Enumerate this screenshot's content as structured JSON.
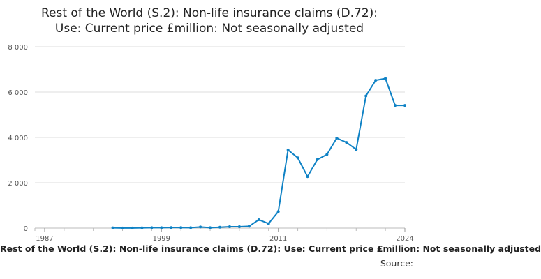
{
  "chart_data": {
    "type": "line",
    "title_lines": [
      "Rest of the World (S.2): Non-life insurance claims (D.72):",
      "Use: Current price £million: Not seasonally adjusted"
    ],
    "footer_title": "Rest of the World (S.2): Non-life insurance claims (D.72): Use: Current price £million: Not seasonally adjusted",
    "source_label": "Source:",
    "xlabel": "",
    "ylabel": "",
    "xlim": [
      1986,
      2024
    ],
    "ylim": [
      0,
      8000
    ],
    "x_ticks": [
      1987,
      1999,
      2011,
      2024
    ],
    "x_tick_labels": [
      "1987",
      "1999",
      "2011",
      "2024"
    ],
    "y_ticks": [
      0,
      2000,
      4000,
      6000,
      8000
    ],
    "y_tick_labels": [
      "0",
      "2 000",
      "4 000",
      "6 000",
      "8 000"
    ],
    "grid": "horizontal",
    "legend": "none",
    "line_color": "#0f82c5",
    "series": [
      {
        "x": [
          1994,
          1995,
          1996,
          1997,
          1998,
          1999,
          2000,
          2001,
          2002,
          2003,
          2004,
          2005,
          2006,
          2007,
          2008,
          2009,
          2010,
          2011,
          2012,
          2013,
          2014,
          2015,
          2016,
          2017,
          2018,
          2019,
          2020,
          2021,
          2022,
          2023,
          2024
        ],
        "values": [
          10,
          5,
          5,
          10,
          20,
          20,
          25,
          25,
          20,
          50,
          20,
          40,
          60,
          60,
          80,
          370,
          200,
          730,
          3450,
          3100,
          2270,
          3020,
          3250,
          3970,
          3780,
          3470,
          5830,
          6520,
          6600,
          5410,
          5410
        ]
      }
    ]
  }
}
